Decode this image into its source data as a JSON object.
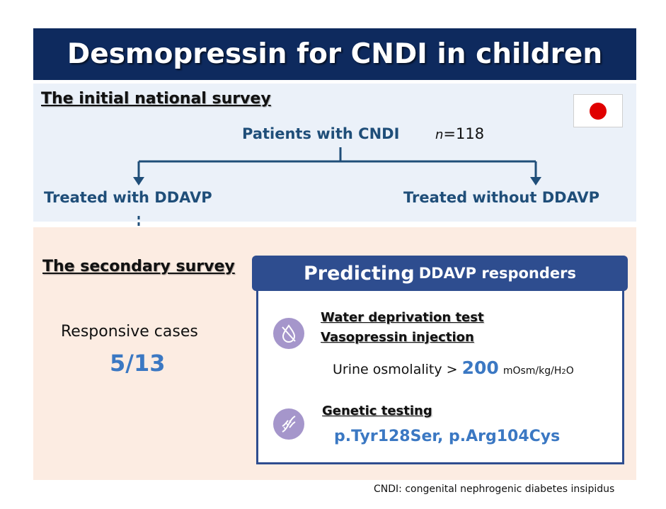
{
  "title": "Desmopressin for CNDI in children",
  "initial_survey": {
    "heading": "The initial national survey",
    "patients_label": "Patients with CNDI",
    "n_symbol": "n",
    "n_value": "=118",
    "branch_left": "Treated with DDAVP",
    "branch_right": "Treated without DDAVP"
  },
  "secondary_survey": {
    "heading": "The secondary survey",
    "responsive_label": "Responsive cases",
    "responsive_value": "5/13"
  },
  "predicting_box": {
    "title_big": "Predicting",
    "title_small": "DDAVP responders",
    "water_test": "Water deprivation test",
    "vasopressin": "Vasopressin injection",
    "urine_label": "Urine osmolality >",
    "urine_value": "200",
    "urine_unit_prefix": "mOsm/kg/H",
    "urine_unit_sub": "2",
    "urine_unit_suffix": "O",
    "genetic_heading": "Genetic testing",
    "genetic_variants": "p.Tyr128Ser, p.Arg104Cys"
  },
  "footnote": "CNDI: congenital nephrogenic diabetes insipidus",
  "icons": {
    "flag": "japan-flag-icon",
    "water": "water-drop-crossed-icon",
    "dna": "dna-icon"
  },
  "colors": {
    "title_bg": "#0e2a5e",
    "heading_blue": "#1f4e79",
    "accent_blue": "#3b78c3",
    "box_border": "#2e4d8f",
    "icon_purple": "#a596cb",
    "panel_top_bg": "#ebf1f9",
    "panel_bottom_bg": "#fcece2"
  }
}
